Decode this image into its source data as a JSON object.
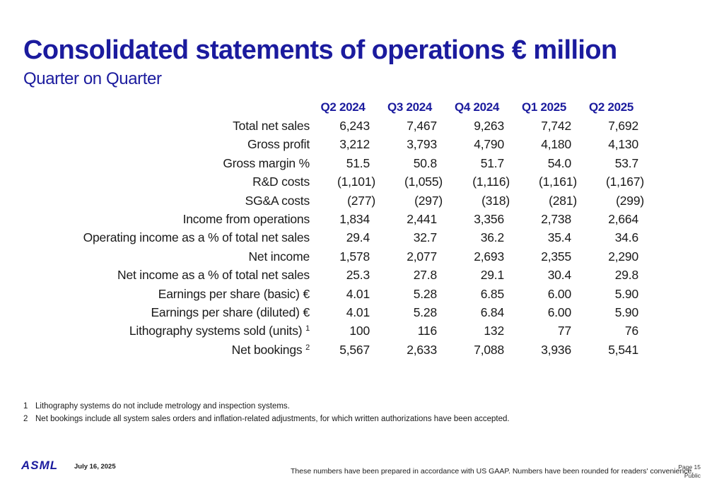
{
  "title": "Consolidated statements of operations € million",
  "subtitle": "Quarter on Quarter",
  "table": {
    "columns": [
      "Q2 2024",
      "Q3 2024",
      "Q4 2024",
      "Q1 2025",
      "Q2 2025"
    ],
    "rows": [
      {
        "label": "Total net sales",
        "values": [
          "6,243",
          "7,467",
          "9,263",
          "7,742",
          "7,692"
        ]
      },
      {
        "label": "Gross profit",
        "values": [
          "3,212",
          "3,793",
          "4,790",
          "4,180",
          "4,130"
        ]
      },
      {
        "label": "Gross margin %",
        "values": [
          "51.5",
          "50.8",
          "51.7",
          "54.0",
          "53.7"
        ]
      },
      {
        "label": "R&D costs",
        "values": [
          "(1,101)",
          "(1,055)",
          "(1,116)",
          "(1,161)",
          "(1,167)"
        ]
      },
      {
        "label": "SG&A costs",
        "values": [
          "(277)",
          "(297)",
          "(318)",
          "(281)",
          "(299)"
        ]
      },
      {
        "label": "Income from operations",
        "values": [
          "1,834",
          "2,441",
          "3,356",
          "2,738",
          "2,664"
        ]
      },
      {
        "label": "Operating income as a % of total net sales",
        "values": [
          "29.4",
          "32.7",
          "36.2",
          "35.4",
          "34.6"
        ]
      },
      {
        "label": "Net income",
        "values": [
          "1,578",
          "2,077",
          "2,693",
          "2,355",
          "2,290"
        ]
      },
      {
        "label": "Net income as a % of total net sales",
        "values": [
          "25.3",
          "27.8",
          "29.1",
          "30.4",
          "29.8"
        ]
      },
      {
        "label": "Earnings per share (basic) €",
        "values": [
          "4.01",
          "5.28",
          "6.85",
          "6.00",
          "5.90"
        ]
      },
      {
        "label": "Earnings per share (diluted) €",
        "values": [
          "4.01",
          "5.28",
          "6.84",
          "6.00",
          "5.90"
        ]
      },
      {
        "label": "Lithography systems sold (units)",
        "sup": "1",
        "values": [
          "100",
          "116",
          "132",
          "77",
          "76"
        ]
      },
      {
        "label": "Net bookings",
        "sup": "2",
        "values": [
          "5,567",
          "2,633",
          "7,088",
          "3,936",
          "5,541"
        ]
      }
    ]
  },
  "footnotes": [
    {
      "num": "1",
      "text": "Lithography systems do not include metrology and inspection systems."
    },
    {
      "num": "2",
      "text": "Net bookings include all system sales orders and inflation-related adjustments, for which written authorizations have been accepted."
    }
  ],
  "footer": {
    "logo": "ASML",
    "date": "July 16, 2025",
    "disclaimer": "These numbers have been prepared in accordance with US GAAP.  Numbers have been rounded for readers' convenience.",
    "page": "Page 15",
    "classification": "Public"
  }
}
